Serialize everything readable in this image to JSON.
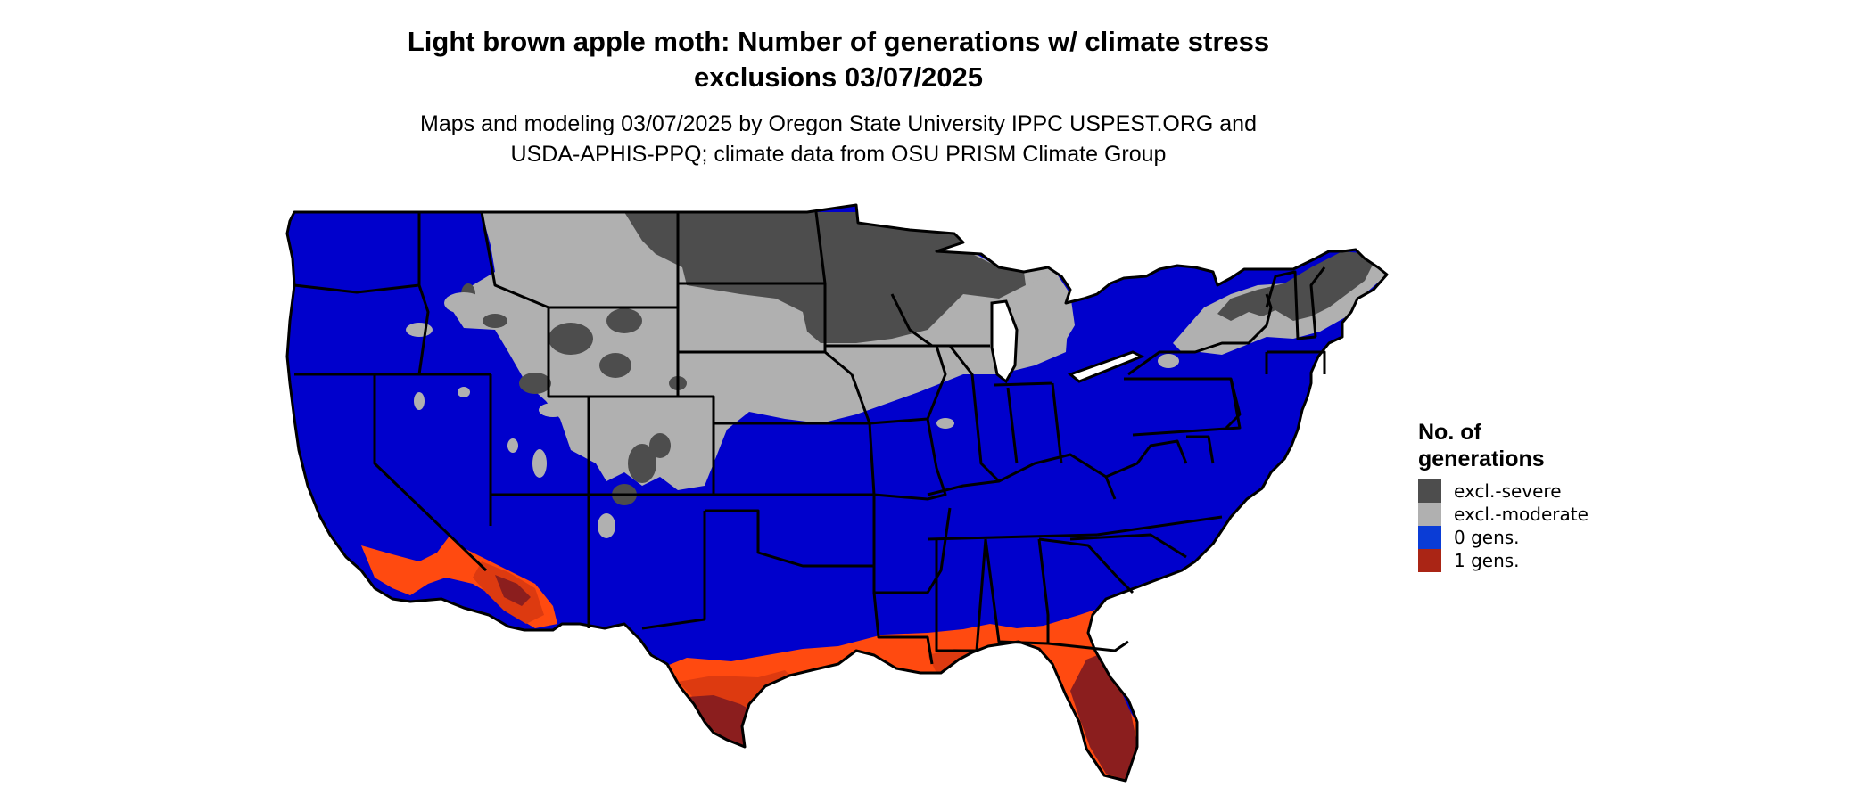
{
  "title": {
    "line1": "Light brown apple moth: Number of generations w/ climate stress",
    "line2": "exclusions 03/07/2025"
  },
  "subtitle": {
    "line1": "Maps and modeling 03/07/2025 by Oregon State University IPPC USPEST.ORG and",
    "line2": "USDA-APHIS-PPQ; climate data from OSU PRISM Climate Group"
  },
  "legend": {
    "title_line1": "No. of",
    "title_line2": "generations",
    "items": [
      {
        "label": "excl.-severe",
        "color": "#4d4d4d"
      },
      {
        "label": "excl.-moderate",
        "color": "#b0b0b0"
      },
      {
        "label": "0 gens.",
        "color": "#0a3cd6"
      },
      {
        "label": "1 gens.",
        "color": "#aa2515"
      }
    ]
  },
  "map_colors": {
    "blue": "#0000cc",
    "light_gray": "#b0b0b0",
    "dark_gray": "#4d4d4d",
    "orange": "#ff4a10",
    "orange_mid": "#dd3a10",
    "dark_red": "#8b1e1e",
    "border": "#000000"
  }
}
